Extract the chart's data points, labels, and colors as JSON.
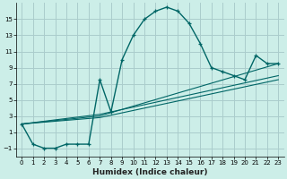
{
  "xlabel": "Humidex (Indice chaleur)",
  "bg_color": "#cceee8",
  "grid_color": "#aacccc",
  "line_color": "#006666",
  "xlim": [
    -0.5,
    23.5
  ],
  "ylim": [
    -2,
    17
  ],
  "xticks": [
    0,
    1,
    2,
    3,
    4,
    5,
    6,
    7,
    8,
    9,
    10,
    11,
    12,
    13,
    14,
    15,
    16,
    17,
    18,
    19,
    20,
    21,
    22,
    23
  ],
  "yticks": [
    -1,
    1,
    3,
    5,
    7,
    9,
    11,
    13,
    15
  ],
  "series1_x": [
    0,
    1,
    2,
    3,
    4,
    5,
    6,
    7,
    8,
    9,
    10,
    11,
    12,
    13,
    14,
    15,
    16,
    17,
    18,
    19,
    20,
    21,
    22,
    23
  ],
  "series1_y": [
    2,
    -0.5,
    -1,
    -1,
    -0.5,
    -0.5,
    -0.5,
    7.5,
    3.5,
    10,
    13,
    15,
    16,
    16.5,
    16,
    14.5,
    12,
    9,
    8.5,
    8,
    7.5,
    10.5,
    9.5,
    9.5
  ],
  "series2_x": [
    0,
    7,
    23
  ],
  "series2_y": [
    2,
    3.2,
    8.0
  ],
  "series3_x": [
    0,
    7,
    23
  ],
  "series3_y": [
    2,
    3.0,
    9.5
  ],
  "series4_x": [
    0,
    7,
    23
  ],
  "series4_y": [
    2,
    2.8,
    7.5
  ]
}
